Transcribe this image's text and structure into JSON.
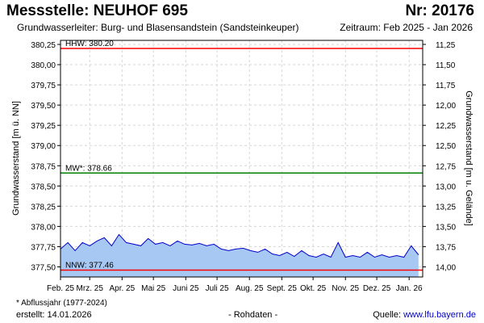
{
  "header": {
    "title": "Messstelle: NEUHOF 695",
    "number": "Nr: 20176",
    "aquifer": "Grundwasserleiter:  Burg- und Blasensandstein (Sandsteinkeuper)",
    "period": "Zeitraum: Feb 2025 - Jan 2026"
  },
  "footer": {
    "footnote": "* Abflussjahr (1977-2024)",
    "created": "erstellt:  14.01.2026",
    "raw": "- Rohdaten -",
    "source_prefix": "Quelle: ",
    "source_link": "www.lfu.bayern.de"
  },
  "chart_data": {
    "type": "area",
    "ylabel": "Grundwasserstand [m ü. NN]",
    "ylabel_right": "Grundwasserstand [m u. Gelände]",
    "ylim": [
      377.375,
      380.3
    ],
    "y_ticks": [
      "377,50",
      "377,75",
      "378,00",
      "378,25",
      "378,50",
      "378,75",
      "379,00",
      "379,25",
      "379,50",
      "379,75",
      "380,00",
      "380,25"
    ],
    "y_ticks_right": [
      "14,00",
      "13,75",
      "13,50",
      "13,25",
      "13,00",
      "12,75",
      "12,50",
      "12,25",
      "12,00",
      "11,75",
      "11,50",
      "11,25"
    ],
    "x_ticks": [
      "Feb. 25",
      "Mrz. 25",
      "Apr. 25",
      "Mai 25",
      "Juni 25",
      "Juli 25",
      "Aug. 25",
      "Sept. 25",
      "Okt. 25",
      "Nov. 25",
      "Dez. 25",
      "Jan. 26"
    ],
    "reference_lines": [
      {
        "label": "HHW: 380.20",
        "value": 380.2,
        "color": "#ff0000"
      },
      {
        "label": "MW*: 378.66",
        "value": 378.66,
        "color": "#008000"
      },
      {
        "label": "NNW: 377.46",
        "value": 377.46,
        "color": "#ff0000"
      }
    ],
    "series": [
      {
        "color": "#0000cc",
        "fill": "#a6c8f2",
        "x": [
          "2025-02-01",
          "2025-02-08",
          "2025-02-15",
          "2025-02-22",
          "2025-03-01",
          "2025-03-08",
          "2025-03-15",
          "2025-03-22",
          "2025-03-29",
          "2025-04-05",
          "2025-04-12",
          "2025-04-19",
          "2025-04-26",
          "2025-05-03",
          "2025-05-10",
          "2025-05-17",
          "2025-05-24",
          "2025-05-31",
          "2025-06-07",
          "2025-06-14",
          "2025-06-21",
          "2025-06-28",
          "2025-07-05",
          "2025-07-12",
          "2025-07-19",
          "2025-07-26",
          "2025-08-02",
          "2025-08-09",
          "2025-08-16",
          "2025-08-23",
          "2025-08-30",
          "2025-09-06",
          "2025-09-13",
          "2025-09-20",
          "2025-09-27",
          "2025-10-04",
          "2025-10-11",
          "2025-10-18",
          "2025-10-25",
          "2025-11-01",
          "2025-11-08",
          "2025-11-15",
          "2025-11-22",
          "2025-11-29",
          "2025-12-06",
          "2025-12-13",
          "2025-12-20",
          "2025-12-27",
          "2026-01-03",
          "2026-01-10"
        ],
        "y": [
          377.72,
          377.8,
          377.7,
          377.8,
          377.76,
          377.82,
          377.86,
          377.76,
          377.9,
          377.8,
          377.78,
          377.76,
          377.85,
          377.78,
          377.8,
          377.76,
          377.82,
          377.78,
          377.77,
          377.79,
          377.76,
          377.78,
          377.72,
          377.7,
          377.72,
          377.73,
          377.7,
          377.68,
          377.72,
          377.66,
          377.64,
          377.68,
          377.63,
          377.7,
          377.64,
          377.62,
          377.66,
          377.62,
          377.8,
          377.62,
          377.64,
          377.62,
          377.68,
          377.62,
          377.65,
          377.62,
          377.64,
          377.62,
          377.76,
          377.65
        ]
      }
    ]
  }
}
